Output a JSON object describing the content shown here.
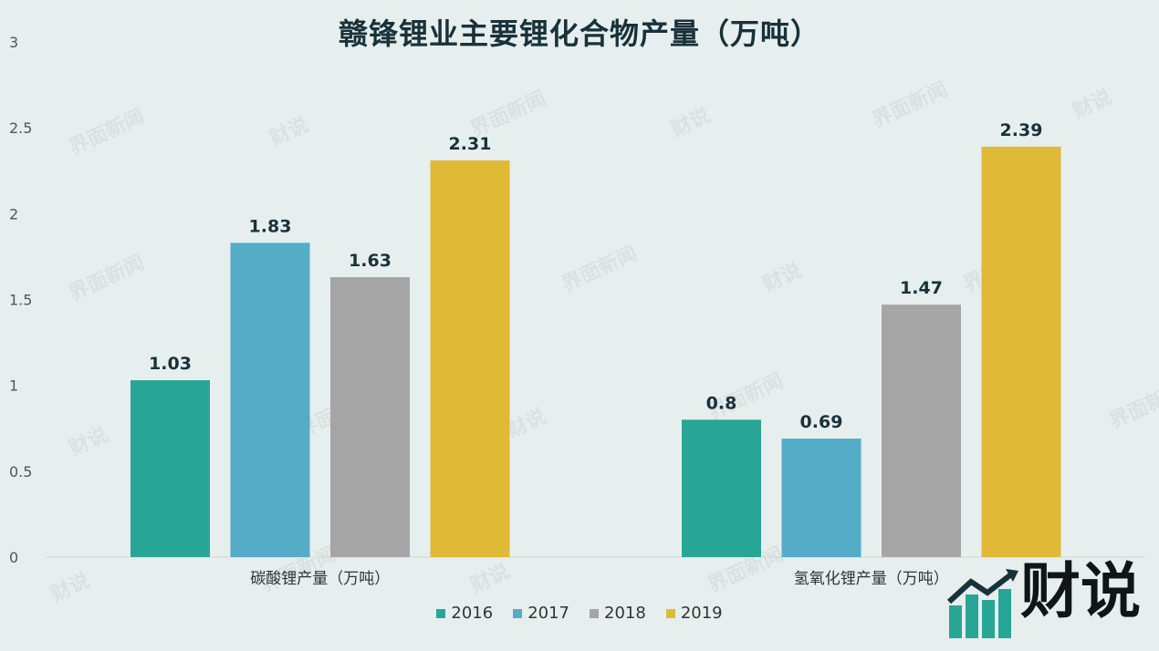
{
  "chart_data": {
    "type": "bar",
    "title": "赣锋锂业主要锂化合物产量（万吨）",
    "categories": [
      "碳酸锂产量（万吨）",
      "氢氧化锂产量（万吨）"
    ],
    "series": [
      {
        "name": "2016",
        "color": "#27a697",
        "values": [
          1.03,
          0.8
        ]
      },
      {
        "name": "2017",
        "color": "#55acc6",
        "values": [
          1.83,
          0.69
        ]
      },
      {
        "name": "2018",
        "color": "#a5a5a5",
        "values": [
          1.63,
          1.47
        ]
      },
      {
        "name": "2019",
        "color": "#e0b937",
        "values": [
          2.31,
          2.39
        ]
      }
    ],
    "ylim": [
      0,
      3
    ],
    "yticks": [
      "0",
      "0.5",
      "1",
      "1.5",
      "2",
      "2.5",
      "3"
    ],
    "legend_position": "bottom",
    "grid": false
  },
  "watermark": {
    "text": "界面新闻",
    "text2": "财说"
  },
  "logo": {
    "text": "财说",
    "icon": "bar-chart-arrow-icon"
  }
}
